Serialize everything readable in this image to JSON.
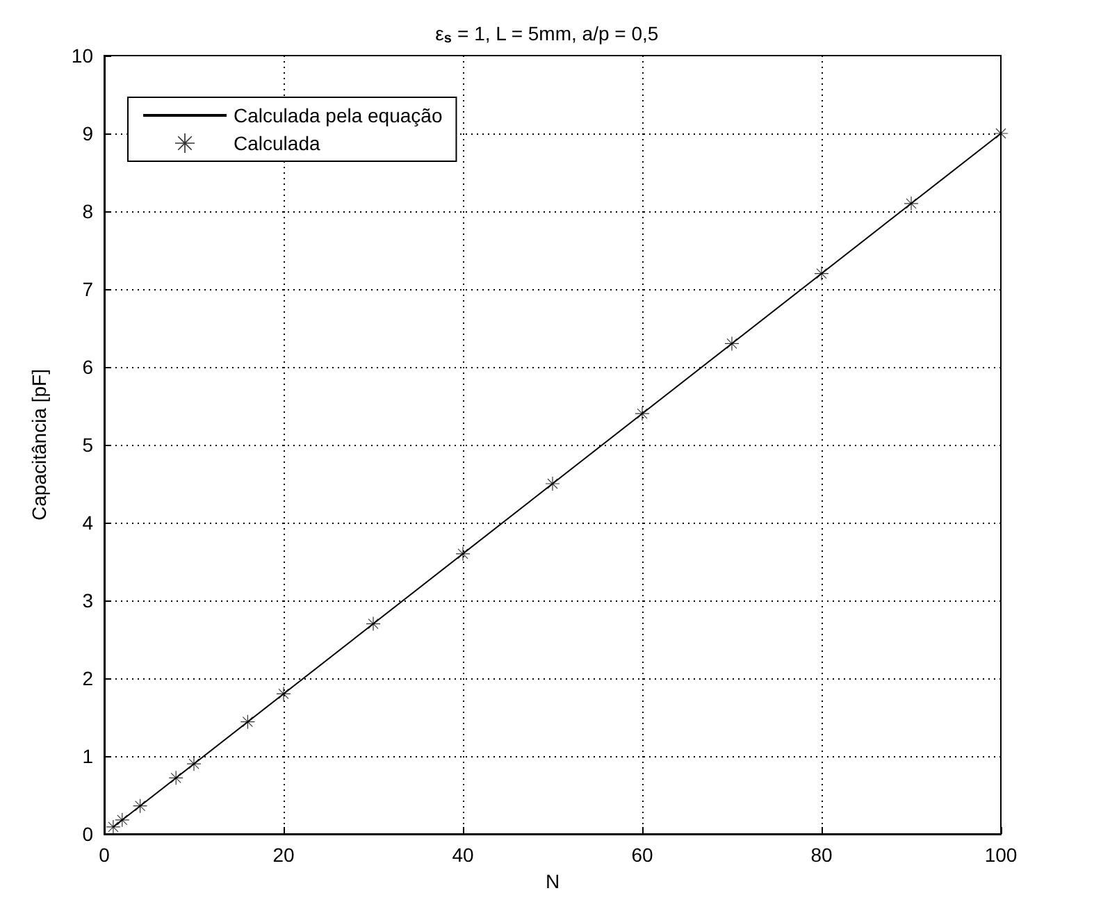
{
  "chart_data": {
    "type": "line",
    "title": "ε$_{s}$ = 1, L = 5mm, a/p = 0,5",
    "xlabel": "N",
    "ylabel": "Capacitância [pF]",
    "xlim": [
      0,
      100
    ],
    "xticks": [
      0,
      20,
      40,
      60,
      80,
      100
    ],
    "ylim": [
      0,
      10
    ],
    "yticks": [
      0,
      1,
      2,
      3,
      4,
      5,
      6,
      7,
      8,
      9,
      10
    ],
    "grid": true,
    "legend": "top left",
    "series": [
      {
        "name": "Calculada pela equação",
        "color": "#000000",
        "marker": "none",
        "line_style": "solid",
        "x": [
          1,
          100
        ],
        "values": [
          0.09,
          9.0
        ]
      },
      {
        "name": "Calculada",
        "type": "scatter",
        "color": "#000000",
        "marker": "star",
        "x": [
          1,
          2,
          4,
          8,
          10,
          16,
          20,
          30,
          40,
          50,
          60,
          70,
          80,
          90,
          100
        ],
        "values": [
          0.09,
          0.18,
          0.36,
          0.72,
          0.9,
          1.44,
          1.8,
          2.7,
          3.6,
          4.5,
          5.4,
          6.3,
          7.2,
          8.1,
          9.0
        ]
      }
    ]
  }
}
